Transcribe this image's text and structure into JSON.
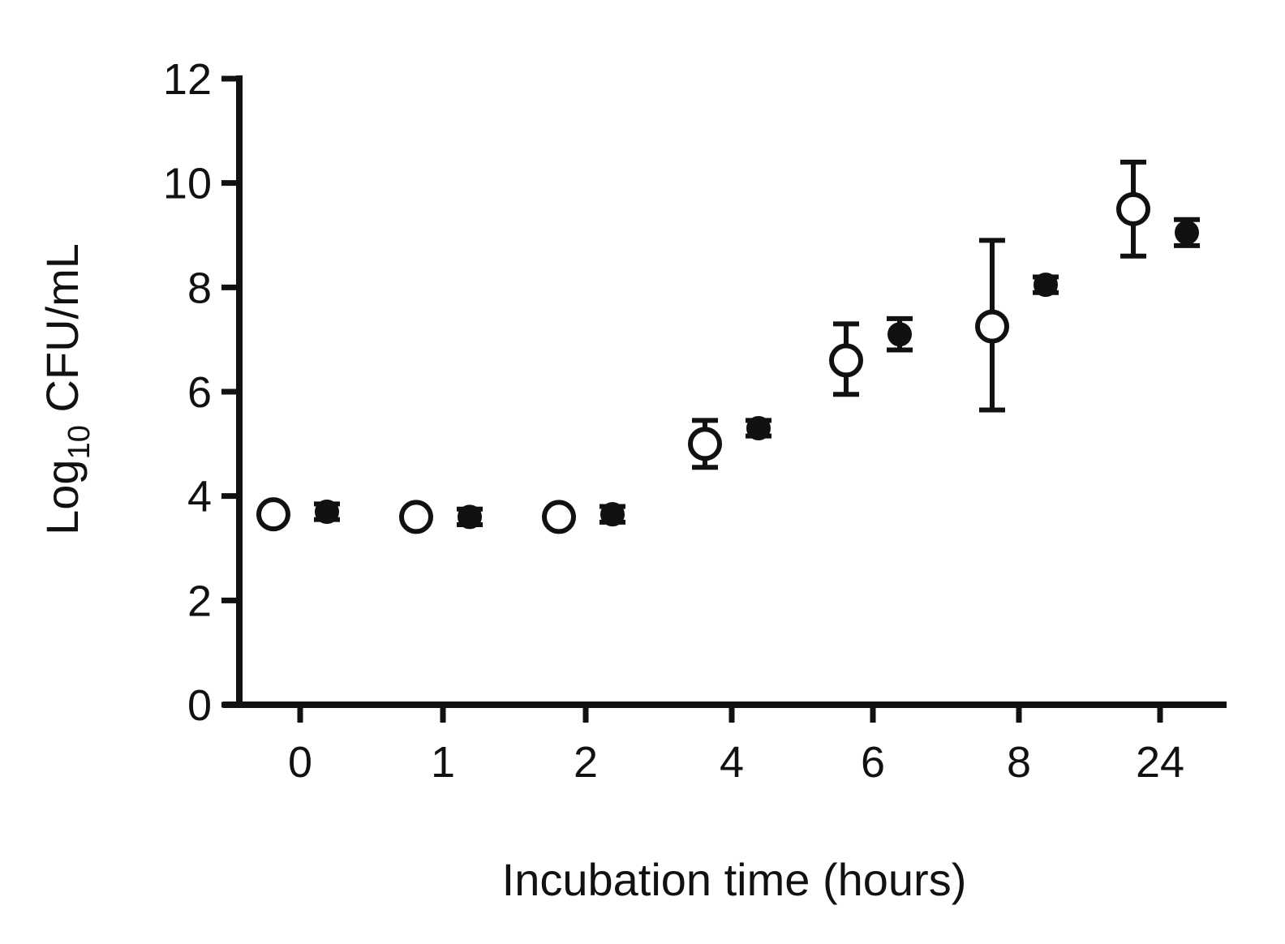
{
  "chart_data": {
    "type": "scatter",
    "title": "",
    "xlabel": "Incubation time (hours)",
    "ylabel": {
      "prefix": "Log",
      "subscript": "10",
      "suffix": " CFU/mL"
    },
    "ylim": [
      0,
      12
    ],
    "yticks": [
      "0",
      "2",
      "4",
      "6",
      "8",
      "10",
      "12"
    ],
    "categories": [
      "0",
      "1",
      "2",
      "4",
      "6",
      "8",
      "24"
    ],
    "grid": false,
    "legend": "none",
    "series": [
      {
        "marker": "open-circle",
        "color": "#111111",
        "values": [
          3.65,
          3.6,
          3.6,
          5.0,
          6.6,
          7.25,
          9.5
        ],
        "error_low": [
          3.65,
          3.6,
          3.6,
          4.55,
          5.95,
          5.65,
          8.6
        ],
        "error_high": [
          3.65,
          3.6,
          3.6,
          5.45,
          7.3,
          8.9,
          10.4
        ]
      },
      {
        "marker": "filled-circle",
        "color": "#111111",
        "values": [
          3.7,
          3.6,
          3.65,
          5.3,
          7.1,
          8.05,
          9.05
        ],
        "error_low": [
          3.55,
          3.45,
          3.5,
          5.15,
          6.8,
          7.9,
          8.8
        ],
        "error_high": [
          3.85,
          3.75,
          3.8,
          5.45,
          7.4,
          8.2,
          9.3
        ]
      }
    ]
  }
}
